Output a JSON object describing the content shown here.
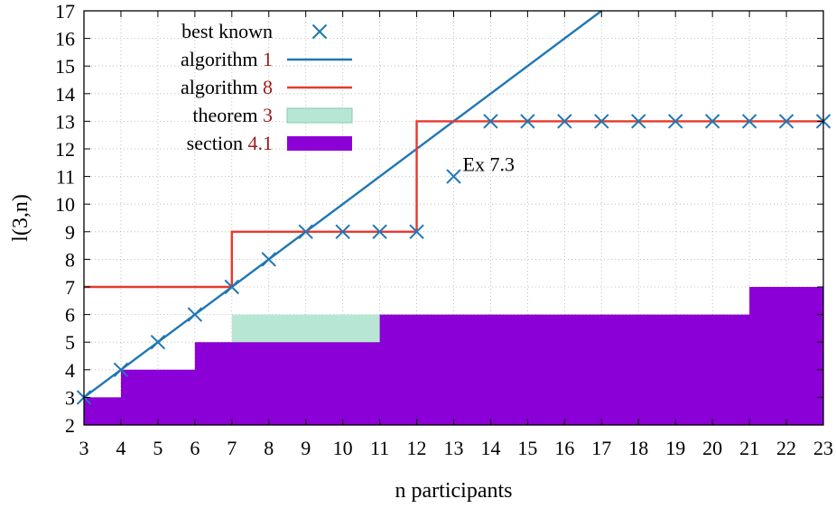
{
  "chart_data": {
    "type": "line",
    "xlabel": "n participants",
    "ylabel": "l(3,n)",
    "xlim": [
      3,
      23
    ],
    "ylim": [
      2,
      17
    ],
    "xticks": [
      3,
      4,
      5,
      6,
      7,
      8,
      9,
      10,
      11,
      12,
      13,
      14,
      15,
      16,
      17,
      18,
      19,
      20,
      21,
      22,
      23
    ],
    "yticks": [
      2,
      3,
      4,
      5,
      6,
      7,
      8,
      9,
      10,
      11,
      12,
      13,
      14,
      15,
      16,
      17
    ],
    "grid": true,
    "legend_position": "top-left",
    "series": [
      {
        "name": "best known",
        "kind": "scatter",
        "marker": "x",
        "color": "#1f77b4",
        "points": [
          [
            3,
            3
          ],
          [
            4,
            4
          ],
          [
            5,
            5
          ],
          [
            6,
            6
          ],
          [
            7,
            7
          ],
          [
            8,
            8
          ],
          [
            9,
            9
          ],
          [
            10,
            9
          ],
          [
            11,
            9
          ],
          [
            12,
            9
          ],
          [
            13,
            11
          ],
          [
            14,
            13
          ],
          [
            15,
            13
          ],
          [
            16,
            13
          ],
          [
            17,
            13
          ],
          [
            18,
            13
          ],
          [
            19,
            13
          ],
          [
            20,
            13
          ],
          [
            21,
            13
          ],
          [
            22,
            13
          ],
          [
            23,
            13
          ]
        ]
      },
      {
        "name": "algorithm 1",
        "label_text": "algorithm",
        "label_ref": "1",
        "kind": "line",
        "color": "#1f77b4",
        "points": [
          [
            3,
            3
          ],
          [
            17,
            17
          ]
        ]
      },
      {
        "name": "algorithm 8",
        "label_text": "algorithm",
        "label_ref": "8",
        "kind": "step",
        "color": "#e8392c",
        "points": [
          [
            3,
            7
          ],
          [
            7,
            7
          ],
          [
            7,
            9
          ],
          [
            12,
            9
          ],
          [
            12,
            13
          ],
          [
            23,
            13
          ]
        ]
      },
      {
        "name": "theorem 3",
        "label_text": "theorem",
        "label_ref": "3",
        "kind": "area",
        "color": "#b8e6d4",
        "points": [
          [
            3,
            3
          ],
          [
            4,
            3
          ],
          [
            4,
            4
          ],
          [
            6,
            4
          ],
          [
            6,
            5
          ],
          [
            7,
            5
          ],
          [
            7,
            6
          ],
          [
            11,
            6
          ],
          [
            11,
            6
          ]
        ]
      },
      {
        "name": "section 4.1",
        "label_text": "section",
        "label_ref": "4.1",
        "kind": "area",
        "color": "#8b00d6",
        "points": [
          [
            3,
            3
          ],
          [
            4,
            3
          ],
          [
            4,
            4
          ],
          [
            6,
            4
          ],
          [
            6,
            5
          ],
          [
            11,
            5
          ],
          [
            11,
            6
          ],
          [
            21,
            6
          ],
          [
            21,
            7
          ],
          [
            23,
            7
          ]
        ]
      }
    ],
    "annotations": [
      {
        "text": "Ex 7.3",
        "x": 13,
        "y": 11
      }
    ],
    "colors": {
      "ref_number": "#9b1c1c"
    }
  }
}
